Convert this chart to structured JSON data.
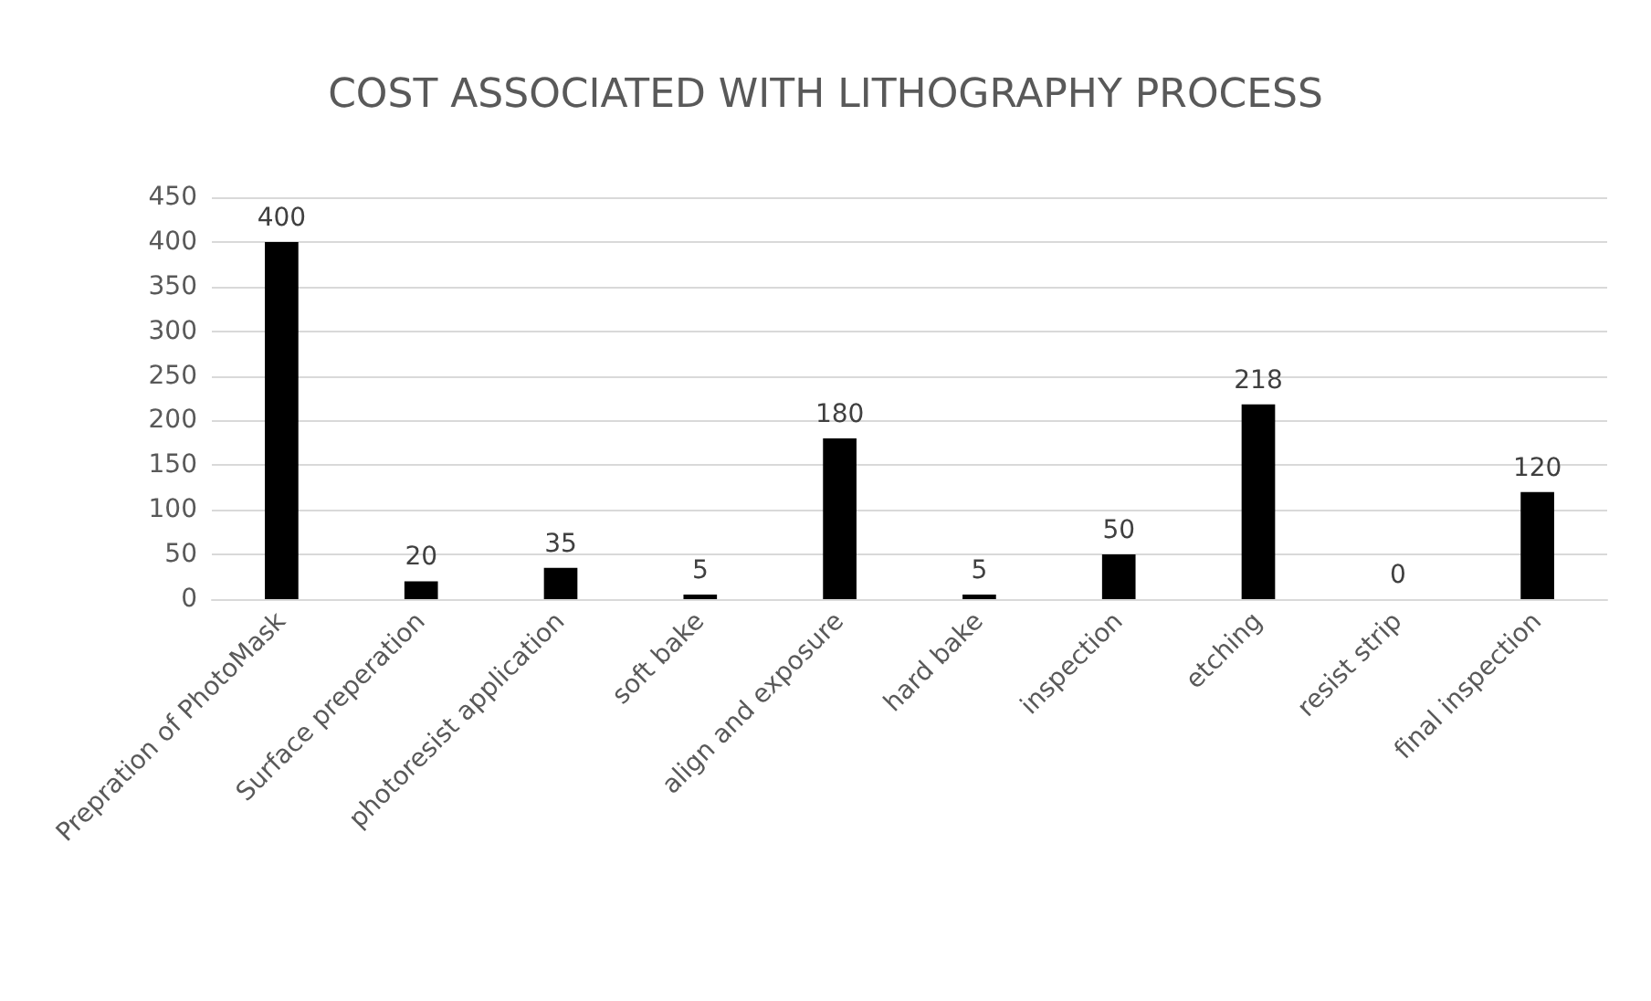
{
  "chart_data": {
    "type": "bar",
    "title": "COST ASSOCIATED WITH LITHOGRAPHY PROCESS",
    "categories": [
      "Prepration of PhotoMask",
      "Surface preperation",
      "photoresist application",
      "soft bake",
      "align and exposure",
      "hard bake",
      "inspection",
      "etching",
      "resist strip",
      "final inspection"
    ],
    "values": [
      400,
      20,
      35,
      5,
      180,
      5,
      50,
      218,
      0,
      120
    ],
    "color": "#000000",
    "ylim": [
      0,
      450
    ],
    "yticks": [
      0,
      50,
      100,
      150,
      200,
      250,
      300,
      350,
      400,
      450
    ],
    "grid": "y",
    "data_labels": true
  }
}
